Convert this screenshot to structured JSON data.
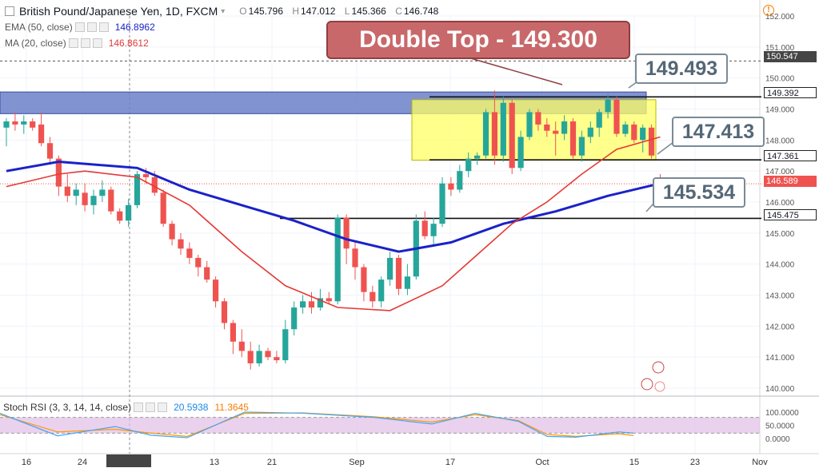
{
  "header": {
    "symbol": "British Pound/Japanese Yen, 1D, FXCM",
    "ohlc": [
      {
        "key": "O",
        "value": "145.796"
      },
      {
        "key": "H",
        "value": "147.012"
      },
      {
        "key": "L",
        "value": "145.366"
      },
      {
        "key": "C",
        "value": "146.748"
      }
    ],
    "ema_label": "EMA (50, close)",
    "ema_value": "146.8962",
    "ma_label": "MA (20, close)",
    "ma_value": "146.8612"
  },
  "stoch": {
    "label": "Stoch RSI (3, 3, 14, 14, close)",
    "k": "20.5938",
    "d": "11.3645",
    "axis": [
      "100.0000",
      "50.0000",
      "0.0000"
    ]
  },
  "annotations": {
    "title": "Double Top - 149.300",
    "lvl1": "149.493",
    "lvl2": "147.413",
    "lvl3": "145.534"
  },
  "price_labels": [
    {
      "text": "150.547",
      "bg": "#454545",
      "fg": "#ffffff"
    },
    {
      "text": "149.392",
      "bg": "#ffffff",
      "fg": "#131722"
    },
    {
      "text": "147.361",
      "bg": "#ffffff",
      "fg": "#131722"
    },
    {
      "text": "146.589",
      "bg": "#ef5350",
      "fg": "#ffffff"
    },
    {
      "text": "145.475",
      "bg": "#ffffff",
      "fg": "#131722"
    }
  ],
  "colors": {
    "up": "#26a69a",
    "down": "#ef5350",
    "ema": "#1a22c8",
    "ma": "#e53935",
    "stoch_k": "#42a5f5",
    "stoch_d": "#ff9800",
    "rsi_band": "#e1bee7",
    "resistance_zone": "#6b80c8",
    "top_box": "#ffff66"
  },
  "chart_data": {
    "type": "candlestick",
    "y_axis": {
      "min": 140,
      "max": 152,
      "ticks": [
        "152.000",
        "151.000",
        "150.000",
        "149.000",
        "148.000",
        "147.000",
        "146.000",
        "145.000",
        "144.000",
        "143.000",
        "142.000",
        "141.000",
        "140.000"
      ]
    },
    "x_axis": {
      "ticks": [
        "16",
        "24",
        "31 Jul '18",
        "13",
        "21",
        "Sep",
        "17",
        "Oct",
        "15",
        "23",
        "Nov"
      ]
    },
    "ohlc": [
      [
        148.4,
        148.7,
        147.8,
        148.6
      ],
      [
        148.6,
        148.9,
        148.3,
        148.5
      ],
      [
        148.5,
        148.8,
        148.2,
        148.6
      ],
      [
        148.6,
        148.7,
        148.3,
        148.4
      ],
      [
        148.5,
        148.9,
        147.8,
        147.9
      ],
      [
        147.9,
        148.1,
        147.2,
        147.4
      ],
      [
        147.4,
        147.5,
        146.2,
        146.5
      ],
      [
        146.5,
        146.9,
        146.0,
        146.2
      ],
      [
        146.2,
        146.6,
        145.9,
        146.4
      ],
      [
        146.3,
        146.6,
        145.7,
        145.9
      ],
      [
        145.9,
        146.4,
        145.6,
        146.2
      ],
      [
        146.2,
        146.7,
        146.0,
        146.4
      ],
      [
        146.4,
        146.5,
        145.6,
        145.7
      ],
      [
        145.7,
        145.8,
        145.3,
        145.4
      ],
      [
        145.4,
        146.1,
        145.2,
        145.9
      ],
      [
        145.9,
        147.0,
        145.8,
        146.9
      ],
      [
        146.9,
        147.1,
        146.6,
        146.8
      ],
      [
        146.8,
        147.0,
        146.2,
        146.3
      ],
      [
        146.3,
        146.4,
        145.2,
        145.3
      ],
      [
        145.3,
        145.4,
        144.6,
        144.8
      ],
      [
        144.8,
        145.0,
        144.3,
        144.5
      ],
      [
        144.5,
        144.7,
        144.0,
        144.2
      ],
      [
        144.2,
        144.3,
        143.6,
        143.9
      ],
      [
        143.9,
        144.1,
        143.4,
        143.5
      ],
      [
        143.5,
        143.6,
        142.6,
        142.8
      ],
      [
        142.8,
        142.9,
        141.9,
        142.1
      ],
      [
        142.1,
        142.2,
        141.1,
        141.5
      ],
      [
        141.5,
        141.9,
        141.0,
        141.2
      ],
      [
        141.2,
        141.5,
        140.6,
        140.8
      ],
      [
        140.8,
        141.4,
        140.7,
        141.2
      ],
      [
        141.2,
        141.3,
        140.9,
        141.0
      ],
      [
        141.0,
        141.2,
        140.8,
        140.9
      ],
      [
        140.9,
        142.2,
        140.8,
        141.9
      ],
      [
        141.9,
        142.8,
        141.7,
        142.6
      ],
      [
        142.6,
        143.0,
        142.4,
        142.8
      ],
      [
        142.8,
        143.1,
        142.4,
        142.6
      ],
      [
        142.6,
        143.2,
        142.5,
        142.9
      ],
      [
        142.9,
        143.1,
        142.7,
        142.8
      ],
      [
        142.8,
        145.6,
        142.7,
        145.5
      ],
      [
        145.5,
        145.6,
        144.0,
        144.5
      ],
      [
        144.5,
        144.7,
        143.5,
        143.9
      ],
      [
        143.9,
        144.0,
        142.8,
        143.1
      ],
      [
        143.1,
        143.3,
        142.6,
        142.8
      ],
      [
        142.8,
        143.6,
        142.6,
        143.5
      ],
      [
        143.5,
        144.4,
        143.3,
        144.2
      ],
      [
        144.2,
        144.3,
        143.0,
        143.2
      ],
      [
        143.2,
        144.0,
        143.0,
        143.6
      ],
      [
        143.6,
        145.6,
        143.5,
        145.4
      ],
      [
        145.4,
        145.7,
        144.8,
        144.9
      ],
      [
        144.9,
        145.5,
        144.6,
        145.3
      ],
      [
        145.3,
        146.8,
        145.2,
        146.6
      ],
      [
        146.6,
        146.8,
        146.2,
        146.4
      ],
      [
        146.4,
        147.2,
        146.3,
        147.0
      ],
      [
        147.0,
        147.6,
        146.8,
        147.4
      ],
      [
        147.4,
        147.6,
        147.2,
        147.5
      ],
      [
        147.5,
        149.0,
        147.4,
        148.9
      ],
      [
        148.9,
        149.6,
        147.2,
        147.5
      ],
      [
        147.5,
        149.4,
        147.3,
        149.2
      ],
      [
        149.2,
        149.3,
        146.9,
        147.1
      ],
      [
        147.1,
        148.3,
        147.0,
        148.1
      ],
      [
        148.1,
        149.0,
        148.0,
        148.9
      ],
      [
        148.9,
        149.0,
        148.3,
        148.5
      ],
      [
        148.5,
        148.7,
        148.1,
        148.3
      ],
      [
        148.3,
        148.6,
        147.5,
        148.2
      ],
      [
        148.2,
        148.8,
        148.0,
        148.6
      ],
      [
        148.6,
        148.7,
        147.4,
        147.5
      ],
      [
        147.5,
        148.3,
        147.3,
        148.1
      ],
      [
        148.1,
        148.6,
        147.9,
        148.4
      ],
      [
        148.4,
        149.0,
        148.1,
        148.9
      ],
      [
        148.9,
        149.5,
        148.7,
        149.3
      ],
      [
        149.3,
        149.4,
        148.1,
        148.2
      ],
      [
        148.2,
        148.6,
        148.1,
        148.5
      ],
      [
        148.5,
        148.6,
        147.9,
        148.0
      ],
      [
        148.0,
        148.5,
        147.6,
        148.4
      ],
      [
        148.4,
        148.5,
        147.4,
        147.5
      ],
      [
        146.7,
        146.9,
        146.5,
        146.6
      ]
    ],
    "ema50": [
      [
        0,
        147.0
      ],
      [
        6,
        147.3
      ],
      [
        15,
        147.1
      ],
      [
        21,
        146.4
      ],
      [
        27,
        145.9
      ],
      [
        33,
        145.4
      ],
      [
        39,
        144.8
      ],
      [
        45,
        144.4
      ],
      [
        51,
        144.7
      ],
      [
        57,
        145.3
      ],
      [
        63,
        145.7
      ],
      [
        69,
        146.2
      ],
      [
        75,
        146.6
      ]
    ],
    "ma20": [
      [
        0,
        146.5
      ],
      [
        6,
        146.9
      ],
      [
        9,
        147.0
      ],
      [
        15,
        146.8
      ],
      [
        21,
        145.9
      ],
      [
        27,
        144.4
      ],
      [
        32,
        143.3
      ],
      [
        38,
        142.6
      ],
      [
        44,
        142.5
      ],
      [
        50,
        143.3
      ],
      [
        54,
        144.3
      ],
      [
        58,
        145.3
      ],
      [
        62,
        146.0
      ],
      [
        66,
        146.9
      ],
      [
        70,
        147.7
      ],
      [
        75,
        148.1
      ]
    ],
    "stoch_k": [
      [
        0,
        95
      ],
      [
        8,
        10
      ],
      [
        16,
        45
      ],
      [
        21,
        12
      ],
      [
        26,
        3
      ],
      [
        34,
        100
      ],
      [
        42,
        96
      ],
      [
        52,
        80
      ],
      [
        60,
        55
      ],
      [
        66,
        95
      ],
      [
        72,
        65
      ],
      [
        76,
        8
      ],
      [
        80,
        5
      ],
      [
        86,
        25
      ],
      [
        88,
        20
      ]
    ],
    "stoch_d": [
      [
        0,
        90
      ],
      [
        8,
        25
      ],
      [
        16,
        35
      ],
      [
        21,
        20
      ],
      [
        26,
        8
      ],
      [
        34,
        95
      ],
      [
        42,
        97
      ],
      [
        52,
        82
      ],
      [
        60,
        62
      ],
      [
        66,
        90
      ],
      [
        72,
        68
      ],
      [
        76,
        15
      ],
      [
        80,
        8
      ],
      [
        86,
        18
      ],
      [
        88,
        11
      ]
    ]
  }
}
